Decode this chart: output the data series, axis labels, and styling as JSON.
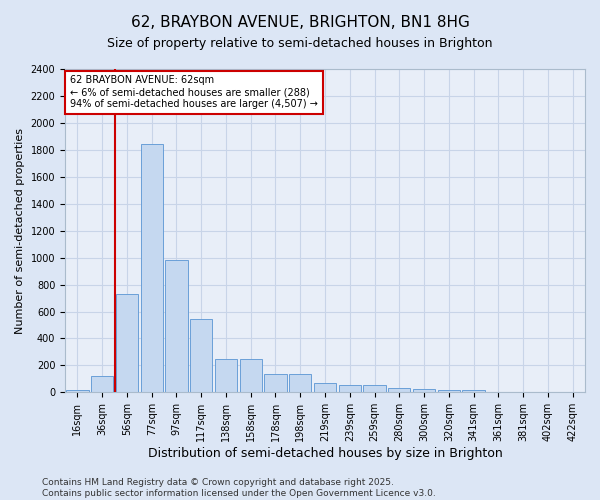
{
  "title1": "62, BRAYBON AVENUE, BRIGHTON, BN1 8HG",
  "title2": "Size of property relative to semi-detached houses in Brighton",
  "xlabel": "Distribution of semi-detached houses by size in Brighton",
  "ylabel": "Number of semi-detached properties",
  "categories": [
    "16sqm",
    "36sqm",
    "56sqm",
    "77sqm",
    "97sqm",
    "117sqm",
    "138sqm",
    "158sqm",
    "178sqm",
    "198sqm",
    "219sqm",
    "239sqm",
    "259sqm",
    "280sqm",
    "300sqm",
    "320sqm",
    "341sqm",
    "361sqm",
    "381sqm",
    "402sqm",
    "422sqm"
  ],
  "values": [
    15,
    125,
    730,
    1840,
    985,
    545,
    250,
    245,
    135,
    135,
    70,
    55,
    55,
    35,
    25,
    20,
    15,
    5,
    5,
    5,
    2
  ],
  "bar_color": "#c5d8f0",
  "bar_edge_color": "#6a9fd8",
  "vline_x": 1.5,
  "vline_color": "#cc0000",
  "annotation_text": "62 BRAYBON AVENUE: 62sqm\n← 6% of semi-detached houses are smaller (288)\n94% of semi-detached houses are larger (4,507) →",
  "annotation_box_color": "white",
  "annotation_edge_color": "#cc0000",
  "ylim": [
    0,
    2400
  ],
  "yticks": [
    0,
    200,
    400,
    600,
    800,
    1000,
    1200,
    1400,
    1600,
    1800,
    2000,
    2200,
    2400
  ],
  "grid_color": "#c8d4e8",
  "background_color": "#dce6f5",
  "plot_bg_color": "#e8eef8",
  "footer": "Contains HM Land Registry data © Crown copyright and database right 2025.\nContains public sector information licensed under the Open Government Licence v3.0.",
  "title1_fontsize": 11,
  "title2_fontsize": 9,
  "xlabel_fontsize": 9,
  "ylabel_fontsize": 8,
  "tick_fontsize": 7,
  "footer_fontsize": 6.5
}
